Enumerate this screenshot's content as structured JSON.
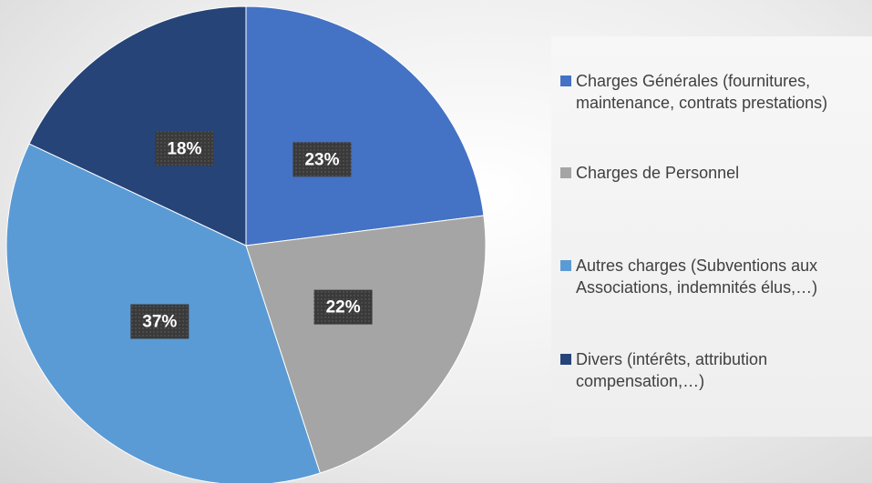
{
  "chart_data": {
    "type": "pie",
    "categories": [
      "Charges Générales (fournitures, maintenance, contrats prestations)",
      "Charges de Personnel",
      "Autres charges (Subventions aux Associations, indemnités élus,…)",
      "Divers (intérêts, attribution compensation,…)"
    ],
    "values": [
      23,
      22,
      37,
      18
    ],
    "value_labels": [
      "23%",
      "22%",
      "37%",
      "18%"
    ],
    "colors": [
      "#4472c4",
      "#a5a5a5",
      "#5b9bd5",
      "#264478"
    ],
    "legend": "right"
  }
}
